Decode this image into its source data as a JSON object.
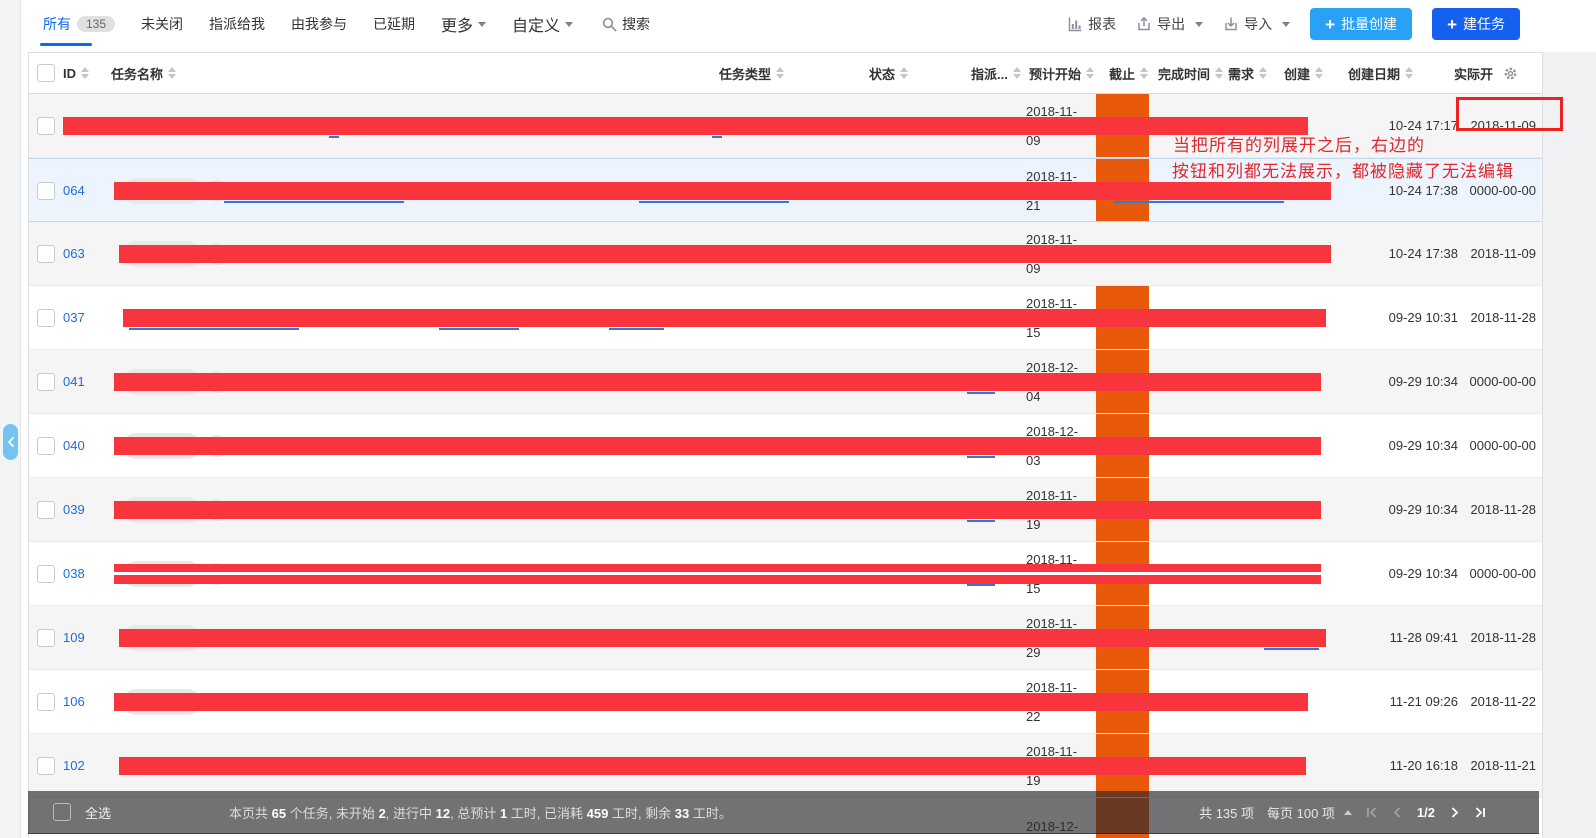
{
  "toolbar": {
    "tabs": [
      {
        "label": "所有",
        "count": "135",
        "active": true
      },
      {
        "label": "未关闭",
        "active": false
      },
      {
        "label": "指派给我",
        "active": false
      },
      {
        "label": "由我参与",
        "active": false
      },
      {
        "label": "已延期",
        "active": false
      }
    ],
    "more_label": "更多",
    "custom_label": "自定义",
    "search_label": "搜索",
    "report_label": "报表",
    "export_label": "导出",
    "import_label": "导入",
    "batch_create_label": "批量创建",
    "create_task_label": "建任务"
  },
  "table": {
    "headers": [
      {
        "key": "check"
      },
      {
        "key": "id",
        "label": "ID",
        "sort": true
      },
      {
        "key": "name",
        "label": "任务名称",
        "sort": true
      },
      {
        "key": "type",
        "label": "任务类型",
        "sort": true
      },
      {
        "key": "status",
        "label": "状态",
        "sort": true
      },
      {
        "key": "assign",
        "label": "指派...",
        "sort": true
      },
      {
        "key": "planstart",
        "label": "预计开始",
        "sort": true
      },
      {
        "key": "deadline",
        "label": "截止",
        "sort": true
      },
      {
        "key": "finish",
        "label": "完成时间",
        "sort": true
      },
      {
        "key": "story",
        "label": "需求",
        "sort": true
      },
      {
        "key": "create",
        "label": "创建",
        "sort": true
      },
      {
        "key": "createdate",
        "label": "创建日期",
        "sort": true
      },
      {
        "key": "actualstart",
        "label": "实际开",
        "sort": false
      },
      {
        "key": "gear"
      }
    ],
    "rows": [
      {
        "id": "",
        "planstart": "2018-11-09",
        "deadline": true,
        "createdate": "10-24 17:17",
        "actualstart": "2018-11-09",
        "bg": "grey",
        "bar": [
          34,
          1279
        ],
        "split": false,
        "badge": false,
        "circle": false,
        "peeks": [
          [
            300,
            10
          ],
          [
            683,
            10
          ]
        ],
        "boxed": true
      },
      {
        "id": "064",
        "planstart": "2018-11-21",
        "deadline": true,
        "createdate": "10-24 17:38",
        "actualstart": "0000-00-00",
        "bg": "blue",
        "bar": [
          85,
          1302
        ],
        "split": false,
        "badge": true,
        "circle": true,
        "peeks": [
          [
            195,
            180
          ],
          [
            610,
            150
          ],
          [
            1085,
            170
          ]
        ],
        "boxed": false
      },
      {
        "id": "063",
        "planstart": "2018-11-09",
        "deadline": false,
        "createdate": "10-24 17:38",
        "actualstart": "2018-11-09",
        "bg": "grey",
        "bar": [
          90,
          1302
        ],
        "split": false,
        "badge": true,
        "circle": true,
        "peeks": [],
        "boxed": false
      },
      {
        "id": "037",
        "planstart": "2018-11-15",
        "deadline": true,
        "createdate": "09-29 10:31",
        "actualstart": "2018-11-28",
        "bg": "white",
        "bar": [
          94,
          1297
        ],
        "split": false,
        "badge": false,
        "circle": false,
        "peeks": [
          [
            100,
            170
          ],
          [
            410,
            80
          ],
          [
            580,
            55
          ]
        ],
        "boxed": false
      },
      {
        "id": "041",
        "planstart": "2018-12-04",
        "deadline": true,
        "createdate": "09-29 10:34",
        "actualstart": "0000-00-00",
        "bg": "grey",
        "bar": [
          85,
          1292
        ],
        "split": false,
        "badge": true,
        "circle": true,
        "peeks": [
          [
            938,
            28
          ]
        ],
        "boxed": false
      },
      {
        "id": "040",
        "planstart": "2018-12-03",
        "deadline": true,
        "createdate": "09-29 10:34",
        "actualstart": "0000-00-00",
        "bg": "white",
        "bar": [
          85,
          1292
        ],
        "split": false,
        "badge": true,
        "circle": true,
        "peeks": [
          [
            938,
            28
          ]
        ],
        "boxed": false
      },
      {
        "id": "039",
        "planstart": "2018-11-19",
        "deadline": true,
        "createdate": "09-29 10:34",
        "actualstart": "2018-11-28",
        "bg": "grey",
        "bar": [
          85,
          1292
        ],
        "split": false,
        "badge": true,
        "circle": true,
        "peeks": [
          [
            938,
            28
          ]
        ],
        "boxed": false
      },
      {
        "id": "038",
        "planstart": "2018-11-15",
        "deadline": true,
        "createdate": "09-29 10:34",
        "actualstart": "0000-00-00",
        "bg": "white",
        "bar": [
          85,
          1292
        ],
        "split": true,
        "badge": true,
        "circle": true,
        "peeks": [
          [
            938,
            28
          ]
        ],
        "boxed": false
      },
      {
        "id": "109",
        "planstart": "2018-11-29",
        "deadline": true,
        "createdate": "11-28 09:41",
        "actualstart": "2018-11-28",
        "bg": "grey",
        "bar": [
          90,
          1297
        ],
        "split": false,
        "badge": true,
        "circle": false,
        "peeks": [
          [
            1235,
            55
          ]
        ],
        "boxed": false
      },
      {
        "id": "106",
        "planstart": "2018-11-22",
        "deadline": true,
        "createdate": "11-21 09:26",
        "actualstart": "2018-11-22",
        "bg": "white",
        "bar": [
          85,
          1279
        ],
        "split": false,
        "badge": true,
        "circle": false,
        "peeks": [],
        "boxed": false
      },
      {
        "id": "102",
        "planstart": "2018-11-19",
        "deadline": true,
        "createdate": "11-20 16:18",
        "actualstart": "2018-11-21",
        "bg": "grey",
        "bar": [
          90,
          1277
        ],
        "split": false,
        "badge": false,
        "circle": false,
        "peeks": [],
        "boxed": false
      },
      {
        "id": "",
        "planstart": "2018-12-",
        "deadline": true,
        "createdate": "",
        "actualstart": "",
        "bg": "white",
        "bar": null,
        "split": false,
        "badge": false,
        "circle": false,
        "peeks": [],
        "boxed": false,
        "partial": true
      }
    ]
  },
  "footer": {
    "select_all_label": "全选",
    "summary_segments": [
      {
        "t": "本页共 "
      },
      {
        "t": "65",
        "b": true
      },
      {
        "t": " 个任务, 未开始 "
      },
      {
        "t": "2",
        "b": true
      },
      {
        "t": ", 进行中 "
      },
      {
        "t": "12",
        "b": true
      },
      {
        "t": ", 总预计 "
      },
      {
        "t": "1",
        "b": true
      },
      {
        "t": " 工时, 已消耗 "
      },
      {
        "t": "459",
        "b": true
      },
      {
        "t": " 工时, 剩余 "
      },
      {
        "t": "33",
        "b": true
      },
      {
        "t": " 工时。"
      }
    ],
    "total_label": "共 135 项",
    "per_page_label": "每页 100 项",
    "page_label": "1/2"
  },
  "annotation": {
    "line1": "当把所有的列展开之后，右边的",
    "line2": "按钮和列都无法展示，都被隐藏了无法编辑"
  },
  "colors": {
    "redaction_bar": "#f8353c",
    "deadline_cell": "#e8590c",
    "annotation_red": "#e0282e",
    "active_tab_blue": "#0a6bf0",
    "batch_create_button": "#29a1f5",
    "create_task_button": "#1560ee"
  }
}
